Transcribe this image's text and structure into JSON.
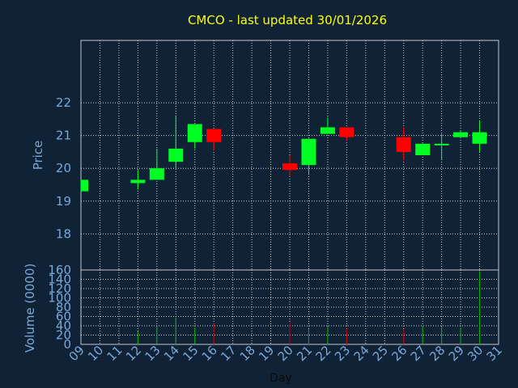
{
  "chart_data": {
    "type": "candlestick",
    "title": "CMCO - last updated 30/01/2026",
    "xlabel": "Day",
    "ylabel": "Price",
    "volume_label": "Volume (0000)",
    "price_ylim": [
      16.9,
      23.9
    ],
    "price_ticks": [
      18,
      19,
      20,
      21,
      22
    ],
    "volume_ylim": [
      0,
      160
    ],
    "volume_ticks": [
      0,
      20,
      40,
      60,
      80,
      100,
      120,
      140,
      160
    ],
    "days": [
      "09",
      "10",
      "11",
      "12",
      "13",
      "14",
      "15",
      "16",
      "17",
      "18",
      "19",
      "20",
      "21",
      "22",
      "23",
      "24",
      "25",
      "26",
      "27",
      "28",
      "29",
      "30",
      "31"
    ],
    "candles": [
      {
        "day": "09",
        "open": 19.3,
        "high": 19.65,
        "low": 19.3,
        "close": 19.65
      },
      {
        "day": "12",
        "open": 19.55,
        "high": 19.95,
        "low": 19.35,
        "close": 19.65
      },
      {
        "day": "13",
        "open": 19.65,
        "high": 20.6,
        "low": 19.65,
        "close": 20.0
      },
      {
        "day": "14",
        "open": 20.2,
        "high": 21.6,
        "low": 20.0,
        "close": 20.6
      },
      {
        "day": "15",
        "open": 20.8,
        "high": 21.35,
        "low": 20.6,
        "close": 21.35
      },
      {
        "day": "16",
        "open": 21.2,
        "high": 21.2,
        "low": 20.55,
        "close": 20.8
      },
      {
        "day": "20",
        "open": 20.15,
        "high": 20.4,
        "low": 19.75,
        "close": 19.95
      },
      {
        "day": "21",
        "open": 20.1,
        "high": 20.9,
        "low": 19.8,
        "close": 20.9
      },
      {
        "day": "22",
        "open": 21.05,
        "high": 21.55,
        "low": 21.05,
        "close": 21.25
      },
      {
        "day": "23",
        "open": 21.25,
        "high": 21.25,
        "low": 20.85,
        "close": 20.95
      },
      {
        "day": "26",
        "open": 20.95,
        "high": 21.25,
        "low": 20.25,
        "close": 20.5
      },
      {
        "day": "27",
        "open": 20.4,
        "high": 20.75,
        "low": 20.4,
        "close": 20.75
      },
      {
        "day": "28",
        "open": 20.7,
        "high": 21.05,
        "low": 20.25,
        "close": 20.75
      },
      {
        "day": "29",
        "open": 20.95,
        "high": 21.15,
        "low": 20.95,
        "close": 21.1
      },
      {
        "day": "30",
        "open": 20.75,
        "high": 21.45,
        "low": 20.5,
        "close": 21.1
      }
    ],
    "volumes": [
      {
        "day": "09",
        "value": 0
      },
      {
        "day": "12",
        "value": 28
      },
      {
        "day": "13",
        "value": 38
      },
      {
        "day": "14",
        "value": 58
      },
      {
        "day": "15",
        "value": 36
      },
      {
        "day": "16",
        "value": 46
      },
      {
        "day": "20",
        "value": 48
      },
      {
        "day": "21",
        "value": 33
      },
      {
        "day": "22",
        "value": 38
      },
      {
        "day": "23",
        "value": 34
      },
      {
        "day": "26",
        "value": 32
      },
      {
        "day": "27",
        "value": 40
      },
      {
        "day": "28",
        "value": 38
      },
      {
        "day": "29",
        "value": 36
      },
      {
        "day": "30",
        "value": 157
      }
    ],
    "grid": true,
    "colors": {
      "background": "#0f2236",
      "up": "#00ff22",
      "down": "#ff0000",
      "volume_up": "#00b000",
      "volume_down": "#c00000",
      "title": "#ffff00",
      "axis_text": "#7aa8d8",
      "grid": "#d0d0d0"
    }
  }
}
